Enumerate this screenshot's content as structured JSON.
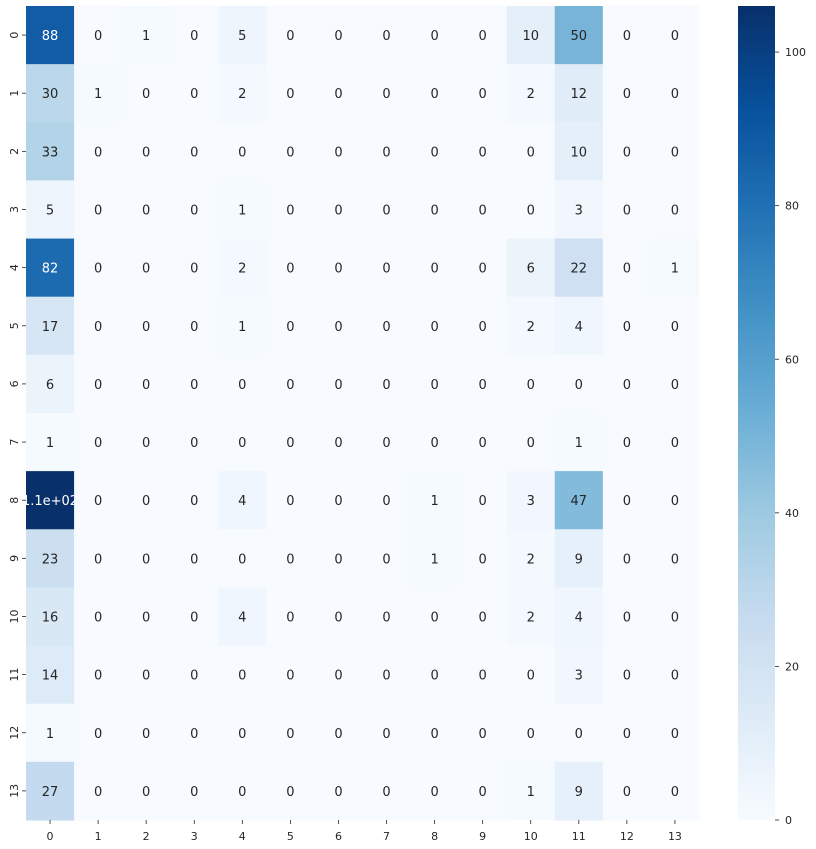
{
  "chart_data": {
    "type": "heatmap",
    "title": "",
    "xlabel": "",
    "ylabel": "",
    "x_categories": [
      "0",
      "1",
      "2",
      "3",
      "4",
      "5",
      "6",
      "7",
      "8",
      "9",
      "10",
      "11",
      "12",
      "13"
    ],
    "y_categories": [
      "0",
      "1",
      "2",
      "3",
      "4",
      "5",
      "6",
      "7",
      "8",
      "9",
      "10",
      "11",
      "12",
      "13"
    ],
    "values": [
      [
        88,
        0,
        1,
        0,
        5,
        0,
        0,
        0,
        0,
        0,
        10,
        50,
        0,
        0
      ],
      [
        30,
        1,
        0,
        0,
        2,
        0,
        0,
        0,
        0,
        0,
        2,
        12,
        0,
        0
      ],
      [
        33,
        0,
        0,
        0,
        0,
        0,
        0,
        0,
        0,
        0,
        0,
        10,
        0,
        0
      ],
      [
        5,
        0,
        0,
        0,
        1,
        0,
        0,
        0,
        0,
        0,
        0,
        3,
        0,
        0
      ],
      [
        82,
        0,
        0,
        0,
        2,
        0,
        0,
        0,
        0,
        0,
        6,
        22,
        0,
        1
      ],
      [
        17,
        0,
        0,
        0,
        1,
        0,
        0,
        0,
        0,
        0,
        2,
        4,
        0,
        0
      ],
      [
        6,
        0,
        0,
        0,
        0,
        0,
        0,
        0,
        0,
        0,
        0,
        0,
        0,
        0
      ],
      [
        1,
        0,
        0,
        0,
        0,
        0,
        0,
        0,
        0,
        0,
        0,
        1,
        0,
        0
      ],
      [
        106,
        0,
        0,
        0,
        4,
        0,
        0,
        0,
        1,
        0,
        3,
        47,
        0,
        0
      ],
      [
        23,
        0,
        0,
        0,
        0,
        0,
        0,
        0,
        1,
        0,
        2,
        9,
        0,
        0
      ],
      [
        16,
        0,
        0,
        0,
        4,
        0,
        0,
        0,
        0,
        0,
        2,
        4,
        0,
        0
      ],
      [
        14,
        0,
        0,
        0,
        0,
        0,
        0,
        0,
        0,
        0,
        0,
        3,
        0,
        0
      ],
      [
        1,
        0,
        0,
        0,
        0,
        0,
        0,
        0,
        0,
        0,
        0,
        0,
        0,
        0
      ],
      [
        27,
        0,
        0,
        0,
        0,
        0,
        0,
        0,
        0,
        0,
        1,
        9,
        0,
        0
      ]
    ],
    "annotations": [
      [
        "88",
        "0",
        "1",
        "0",
        "5",
        "0",
        "0",
        "0",
        "0",
        "0",
        "10",
        "50",
        "0",
        "0"
      ],
      [
        "30",
        "1",
        "0",
        "0",
        "2",
        "0",
        "0",
        "0",
        "0",
        "0",
        "2",
        "12",
        "0",
        "0"
      ],
      [
        "33",
        "0",
        "0",
        "0",
        "0",
        "0",
        "0",
        "0",
        "0",
        "0",
        "0",
        "10",
        "0",
        "0"
      ],
      [
        "5",
        "0",
        "0",
        "0",
        "1",
        "0",
        "0",
        "0",
        "0",
        "0",
        "0",
        "3",
        "0",
        "0"
      ],
      [
        "82",
        "0",
        "0",
        "0",
        "2",
        "0",
        "0",
        "0",
        "0",
        "0",
        "6",
        "22",
        "0",
        "1"
      ],
      [
        "17",
        "0",
        "0",
        "0",
        "1",
        "0",
        "0",
        "0",
        "0",
        "0",
        "2",
        "4",
        "0",
        "0"
      ],
      [
        "6",
        "0",
        "0",
        "0",
        "0",
        "0",
        "0",
        "0",
        "0",
        "0",
        "0",
        "0",
        "0",
        "0"
      ],
      [
        "1",
        "0",
        "0",
        "0",
        "0",
        "0",
        "0",
        "0",
        "0",
        "0",
        "0",
        "1",
        "0",
        "0"
      ],
      [
        "1.1e+02",
        "0",
        "0",
        "0",
        "4",
        "0",
        "0",
        "0",
        "1",
        "0",
        "3",
        "47",
        "0",
        "0"
      ],
      [
        "23",
        "0",
        "0",
        "0",
        "0",
        "0",
        "0",
        "0",
        "1",
        "0",
        "2",
        "9",
        "0",
        "0"
      ],
      [
        "16",
        "0",
        "0",
        "0",
        "4",
        "0",
        "0",
        "0",
        "0",
        "0",
        "2",
        "4",
        "0",
        "0"
      ],
      [
        "14",
        "0",
        "0",
        "0",
        "0",
        "0",
        "0",
        "0",
        "0",
        "0",
        "0",
        "3",
        "0",
        "0"
      ],
      [
        "1",
        "0",
        "0",
        "0",
        "0",
        "0",
        "0",
        "0",
        "0",
        "0",
        "0",
        "0",
        "0",
        "0"
      ],
      [
        "27",
        "0",
        "0",
        "0",
        "0",
        "0",
        "0",
        "0",
        "0",
        "0",
        "1",
        "9",
        "0",
        "0"
      ]
    ],
    "colormap": "Blues",
    "colormap_stops": [
      "#f7fbff",
      "#deebf7",
      "#c6dbef",
      "#9ecae1",
      "#6baed6",
      "#4292c6",
      "#2171b5",
      "#08519c",
      "#08306b"
    ],
    "vmin": 0,
    "vmax": 106,
    "colorbar_ticks": [
      {
        "value": 0,
        "label": "0"
      },
      {
        "value": 20,
        "label": "20"
      },
      {
        "value": 40,
        "label": "40"
      },
      {
        "value": 60,
        "label": "60"
      },
      {
        "value": 80,
        "label": "80"
      },
      {
        "value": 100,
        "label": "100"
      }
    ],
    "grid": false,
    "legend": "colorbar-right"
  }
}
